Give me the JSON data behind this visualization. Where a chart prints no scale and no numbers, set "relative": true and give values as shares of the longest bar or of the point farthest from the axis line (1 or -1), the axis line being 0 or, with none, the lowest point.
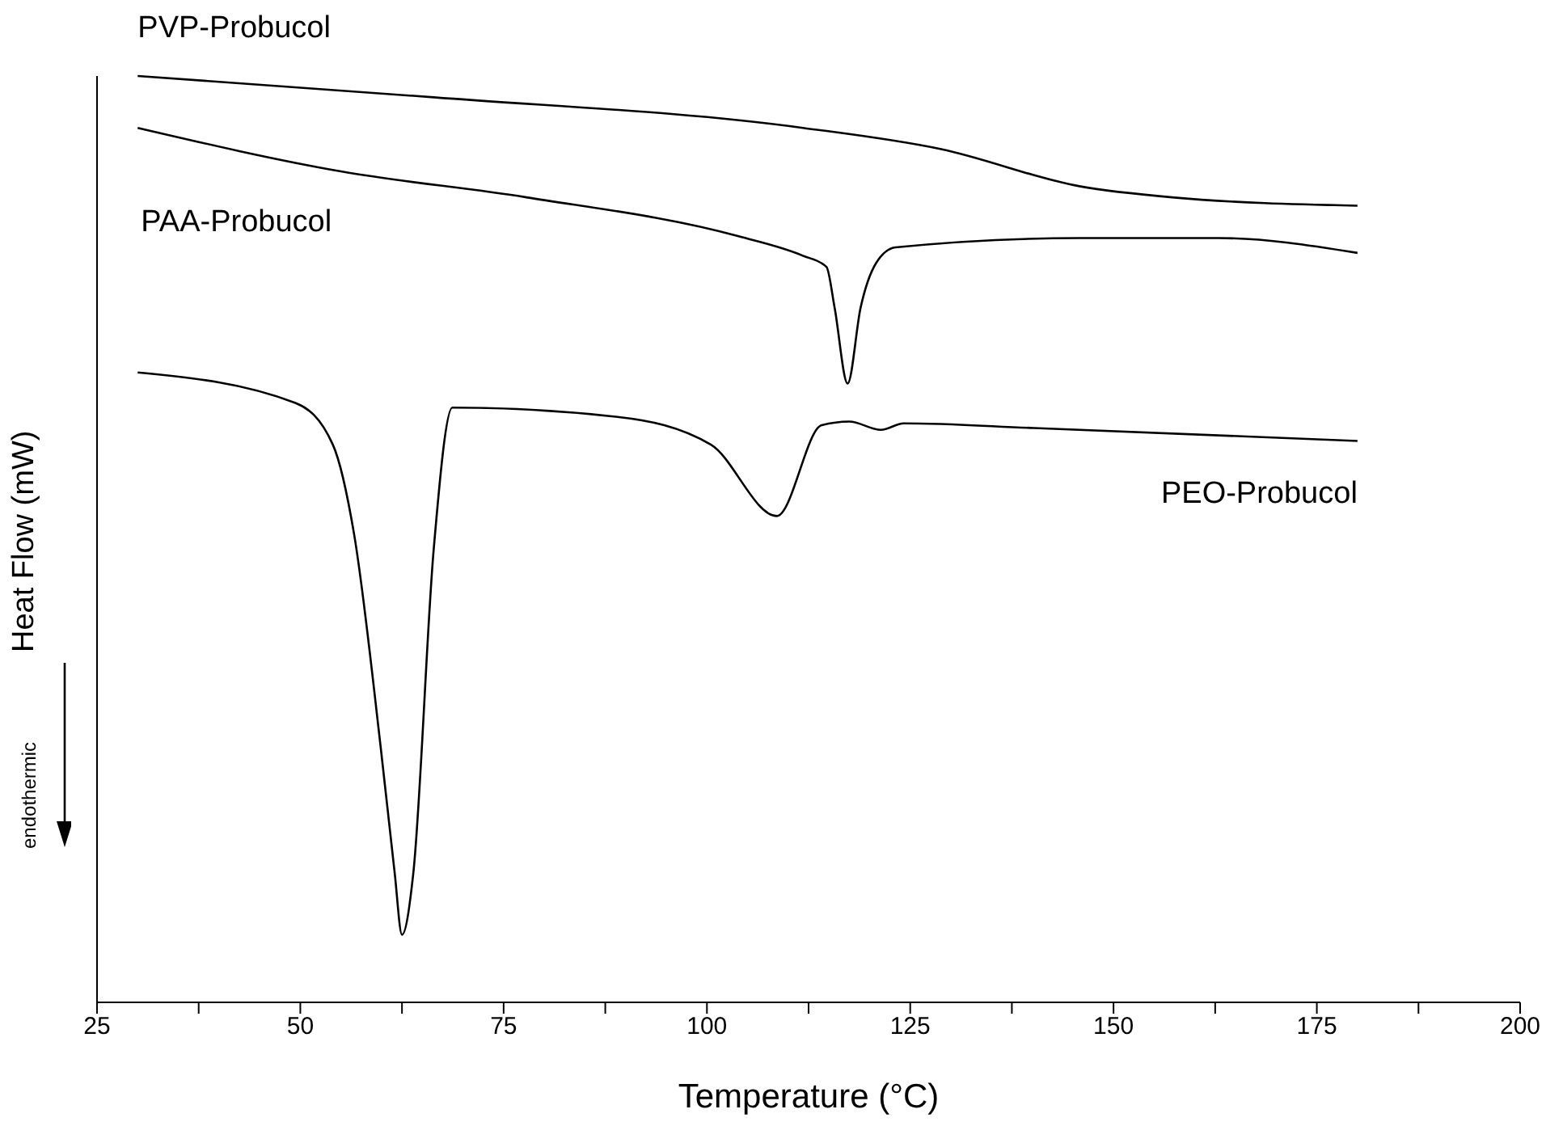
{
  "chart_data": {
    "type": "line",
    "xlabel": "Temperature (°C)",
    "ylabel": "Heat Flow (mW)",
    "relative": true,
    "xlim": [
      25,
      200
    ],
    "xticks": [
      25,
      {
        "value": 37.5,
        "label": null
      },
      50,
      {
        "value": 62.5,
        "label": null
      },
      75,
      {
        "value": 87.5,
        "label": null
      },
      100,
      {
        "value": 112.5,
        "label": null
      },
      125,
      {
        "value": 137.5,
        "label": null
      },
      150,
      {
        "value": 162.5,
        "label": null
      },
      175,
      {
        "value": 187.5,
        "label": null
      },
      200
    ],
    "series": [
      {
        "name": "PVP-Probucol",
        "color": "#000000",
        "x": [
          30,
          66.4,
          111.8,
          128.8,
          145.8,
          157.2,
          180
        ],
        "values": [
          1.0,
          0.977,
          0.944,
          0.921,
          0.881,
          0.869,
          0.86
        ]
      },
      {
        "name": "PAA-Probucol",
        "color": "#000000",
        "x": [
          30,
          55,
          77.8,
          103.9,
          111.8,
          114.7,
          115.7,
          117.3,
          118.9,
          120.8,
          123.2,
          145.8,
          162.9,
          180
        ],
        "values": [
          0.944,
          0.897,
          0.869,
          0.827,
          0.806,
          0.794,
          0.75,
          0.668,
          0.75,
          0.798,
          0.815,
          0.825,
          0.825,
          0.809
        ]
      },
      {
        "name": "PEO-Probucol",
        "color": "#000000",
        "x": [
          30,
          49.4,
          54,
          56.6,
          59.9,
          61.6,
          62.5,
          63.9,
          66.4,
          68.7,
          89,
          100.5,
          108.6,
          114.1,
          117.5,
          121.4,
          124.2,
          140.2,
          180
        ],
        "values": [
          0.68,
          0.647,
          0.602,
          0.506,
          0.274,
          0.14,
          0.073,
          0.14,
          0.489,
          0.642,
          0.632,
          0.602,
          0.525,
          0.623,
          0.627,
          0.618,
          0.625,
          0.62,
          0.606
        ]
      }
    ],
    "annotations": [
      "endothermic"
    ],
    "grid": false,
    "legend": false,
    "marker": "none",
    "line_style": "solid"
  }
}
